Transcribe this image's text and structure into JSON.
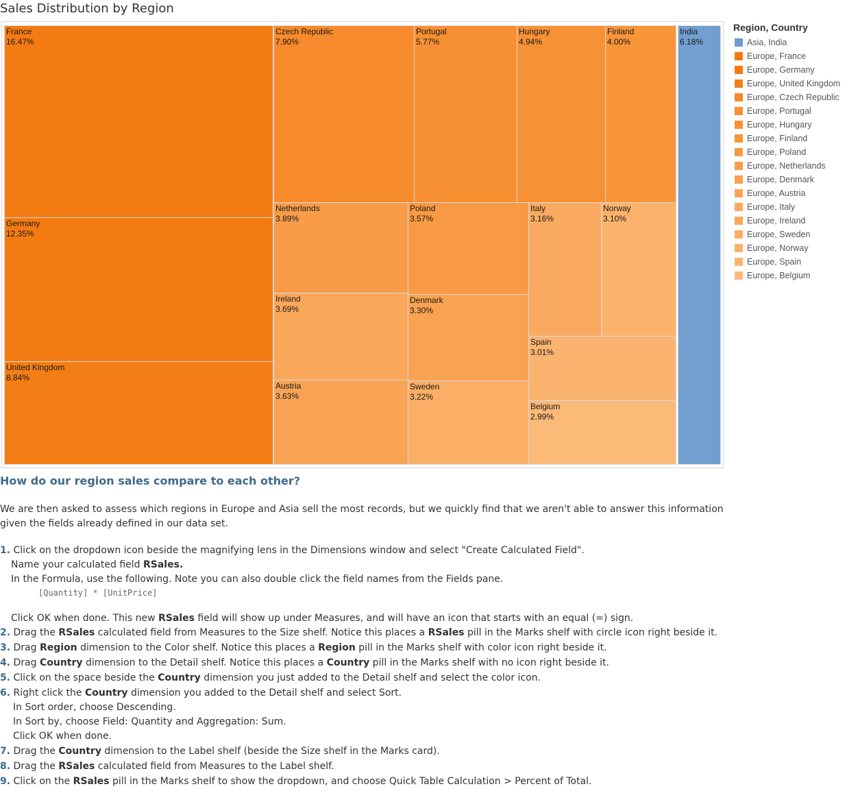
{
  "page": {
    "title": "Sales Distribution by Region",
    "question": "How do our region sales compare to each other?",
    "intro": "We are then asked to assess which regions in Europe and Asia sell the most records, but we quickly find that we aren't able to answer this information given the fields already defined in our data set."
  },
  "chart_data": {
    "type": "treemap",
    "title": "Sales Distribution by Region",
    "legend_title": "Region, Country",
    "legend_placement": "right",
    "tiles": [
      {
        "region": "Europe",
        "country": "France",
        "value": 16.47,
        "label": "16.47%",
        "color": "#f47b12"
      },
      {
        "region": "Europe",
        "country": "Germany",
        "value": 12.35,
        "label": "12.35%",
        "color": "#f47b12"
      },
      {
        "region": "Europe",
        "country": "United Kingdom",
        "value": 8.84,
        "label": "8.84%",
        "color": "#f47e16"
      },
      {
        "region": "Europe",
        "country": "Czech Republic",
        "value": 7.9,
        "label": "7.90%",
        "color": "#f68a2c"
      },
      {
        "region": "Europe",
        "country": "Portugal",
        "value": 5.77,
        "label": "5.77%",
        "color": "#f78f33"
      },
      {
        "region": "Europe",
        "country": "Hungary",
        "value": 4.94,
        "label": "4.94%",
        "color": "#f79135"
      },
      {
        "region": "Europe",
        "country": "Finland",
        "value": 4.0,
        "label": "4.00%",
        "color": "#f79538"
      },
      {
        "region": "Europe",
        "country": "Netherlands",
        "value": 3.89,
        "label": "3.89%",
        "color": "#f89c49"
      },
      {
        "region": "Europe",
        "country": "Poland",
        "value": 3.57,
        "label": "3.57%",
        "color": "#f89a43"
      },
      {
        "region": "Europe",
        "country": "Italy",
        "value": 3.16,
        "label": "3.16%",
        "color": "#faaa60"
      },
      {
        "region": "Europe",
        "country": "Norway",
        "value": 3.1,
        "label": "3.10%",
        "color": "#fbb36c"
      },
      {
        "region": "Europe",
        "country": "Ireland",
        "value": 3.69,
        "label": "3.69%",
        "color": "#faa75b"
      },
      {
        "region": "Europe",
        "country": "Denmark",
        "value": 3.3,
        "label": "3.30%",
        "color": "#f9a251"
      },
      {
        "region": "Europe",
        "country": "Spain",
        "value": 3.01,
        "label": "3.01%",
        "color": "#fbb470"
      },
      {
        "region": "Europe",
        "country": "Austria",
        "value": 3.63,
        "label": "3.63%",
        "color": "#f9a454"
      },
      {
        "region": "Europe",
        "country": "Sweden",
        "value": 3.22,
        "label": "3.22%",
        "color": "#fbae66"
      },
      {
        "region": "Europe",
        "country": "Belgium",
        "value": 2.99,
        "label": "2.99%",
        "color": "#fbba78"
      },
      {
        "region": "Asia",
        "country": "India",
        "value": 6.18,
        "label": "6.18%",
        "color": "#729fcf"
      }
    ],
    "legend": [
      {
        "label": "Asia, India",
        "color": "#6c9bd2"
      },
      {
        "label": "Europe, France",
        "color": "#f47b12"
      },
      {
        "label": "Europe, Germany",
        "color": "#f47b12"
      },
      {
        "label": "Europe, United Kingdom",
        "color": "#f47e16"
      },
      {
        "label": "Europe, Czech Republic",
        "color": "#f68a2c"
      },
      {
        "label": "Europe, Portugal",
        "color": "#f78f33"
      },
      {
        "label": "Europe, Hungary",
        "color": "#f79135"
      },
      {
        "label": "Europe, Finland",
        "color": "#f79538"
      },
      {
        "label": "Europe, Poland",
        "color": "#f89a43"
      },
      {
        "label": "Europe, Netherlands",
        "color": "#f89c49"
      },
      {
        "label": "Europe, Denmark",
        "color": "#f9a251"
      },
      {
        "label": "Europe, Austria",
        "color": "#f9a454"
      },
      {
        "label": "Europe, Italy",
        "color": "#faaa60"
      },
      {
        "label": "Europe, Ireland",
        "color": "#faa75b"
      },
      {
        "label": "Europe, Sweden",
        "color": "#fbae66"
      },
      {
        "label": "Europe, Norway",
        "color": "#fbb36c"
      },
      {
        "label": "Europe, Spain",
        "color": "#fbb470"
      },
      {
        "label": "Europe, Belgium",
        "color": "#fbba78"
      }
    ]
  },
  "steps": {
    "s1": {
      "num": "1.",
      "text": "Click on the dropdown icon beside the magnifying lens in the Dimensions window and select \"Create Calculated Field\"."
    },
    "s1a_pre": "Name your calculated field ",
    "s1a_bold": "RSales.",
    "s1b": "In the Formula, use the following. Note you can also double click the field names from the Fields pane.",
    "s1_code": "[Quantity] * [UnitPrice]",
    "s1c_pre": "Click OK when done. This new ",
    "s1c_bold": "RSales",
    "s1c_post": " field will show up under Measures, and will have an icon that starts with an equal (=) sign.",
    "s2": {
      "num": "2.",
      "pre": " Drag the ",
      "b1": "RSales",
      "mid": " calculated field from Measures to the Size shelf. Notice this places a ",
      "b2": "RSales",
      "post": " pill in the Marks shelf with circle icon right beside it."
    },
    "s3": {
      "num": "3.",
      "pre": " Drag ",
      "b1": "Region",
      "mid": " dimension to the Color shelf.  Notice this places a ",
      "b2": "Region",
      "post": " pill in the Marks shelf with color icon right beside it."
    },
    "s4": {
      "num": "4.",
      "pre": " Drag ",
      "b1": "Country",
      "mid": " dimension to the Detail shelf. Notice this places a ",
      "b2": "Country",
      "post": " pill in the Marks shelf with no icon right beside it."
    },
    "s5": {
      "num": "5.",
      "pre": " Click on the space beside the ",
      "b1": "Country",
      "post": " dimension you just added to the Detail shelf and select the color icon."
    },
    "s6": {
      "num": "6.",
      "pre": " Right click the ",
      "b1": "Country",
      "post": " dimension you added to the Detail shelf and select Sort."
    },
    "s6a": "In Sort order, choose Descending.",
    "s6b": "In Sort by, choose Field: Quantity and Aggregation: Sum.",
    "s6c": "Click OK when done.",
    "s7": {
      "num": "7.",
      "pre": " Drag the ",
      "b1": "Country",
      "post": " dimension to the Label shelf (beside the Size shelf in the Marks card)."
    },
    "s8": {
      "num": "8.",
      "pre": " Drag the ",
      "b1": "RSales",
      "post": " calculated field from Measures to the Label shelf."
    },
    "s9": {
      "num": "9.",
      "pre": " Click on the ",
      "b1": "RSales",
      "post": " pill in the Marks shelf to show the dropdown, and choose Quick Table Calculation > Percent of Total."
    }
  }
}
